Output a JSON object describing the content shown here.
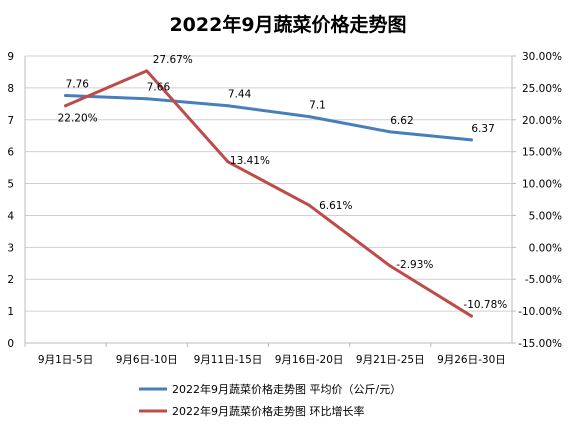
{
  "chart_data": {
    "type": "line",
    "title": "2022年9月蔬菜价格走势图",
    "categories": [
      "9月1日-5日",
      "9月6日-10日",
      "9月11日-15日",
      "9月16日-20日",
      "9月21日-25日",
      "9月26日-30日"
    ],
    "left_axis": {
      "ylim": [
        0,
        9
      ],
      "ticks": [
        "0",
        "1",
        "2",
        "3",
        "4",
        "5",
        "6",
        "7",
        "8",
        "9"
      ]
    },
    "right_axis": {
      "ylim": [
        -15,
        30
      ],
      "ticks": [
        "-15.00%",
        "-10.00%",
        "-5.00%",
        "0.00%",
        "5.00%",
        "10.00%",
        "15.00%",
        "20.00%",
        "25.00%",
        "30.00%"
      ]
    },
    "series": [
      {
        "name": "2022年9月蔬菜价格走势图  平均价（公斤/元）",
        "axis": "left",
        "color": "#4a7ebb",
        "values": [
          7.76,
          7.66,
          7.44,
          7.1,
          6.62,
          6.37
        ],
        "labels": [
          "7.76",
          "7.66",
          "7.44",
          "7.1",
          "6.62",
          "6.37"
        ]
      },
      {
        "name": "2022年9月蔬菜价格走势图  环比增长率",
        "axis": "right",
        "color": "#be4b48",
        "values": [
          22.2,
          27.67,
          13.41,
          6.61,
          -2.93,
          -10.78
        ],
        "labels": [
          "22.20%",
          "27.67%",
          "13.41%",
          "6.61%",
          "-2.93%",
          "-10.78%"
        ]
      }
    ],
    "grid": true,
    "legend_position": "bottom"
  }
}
